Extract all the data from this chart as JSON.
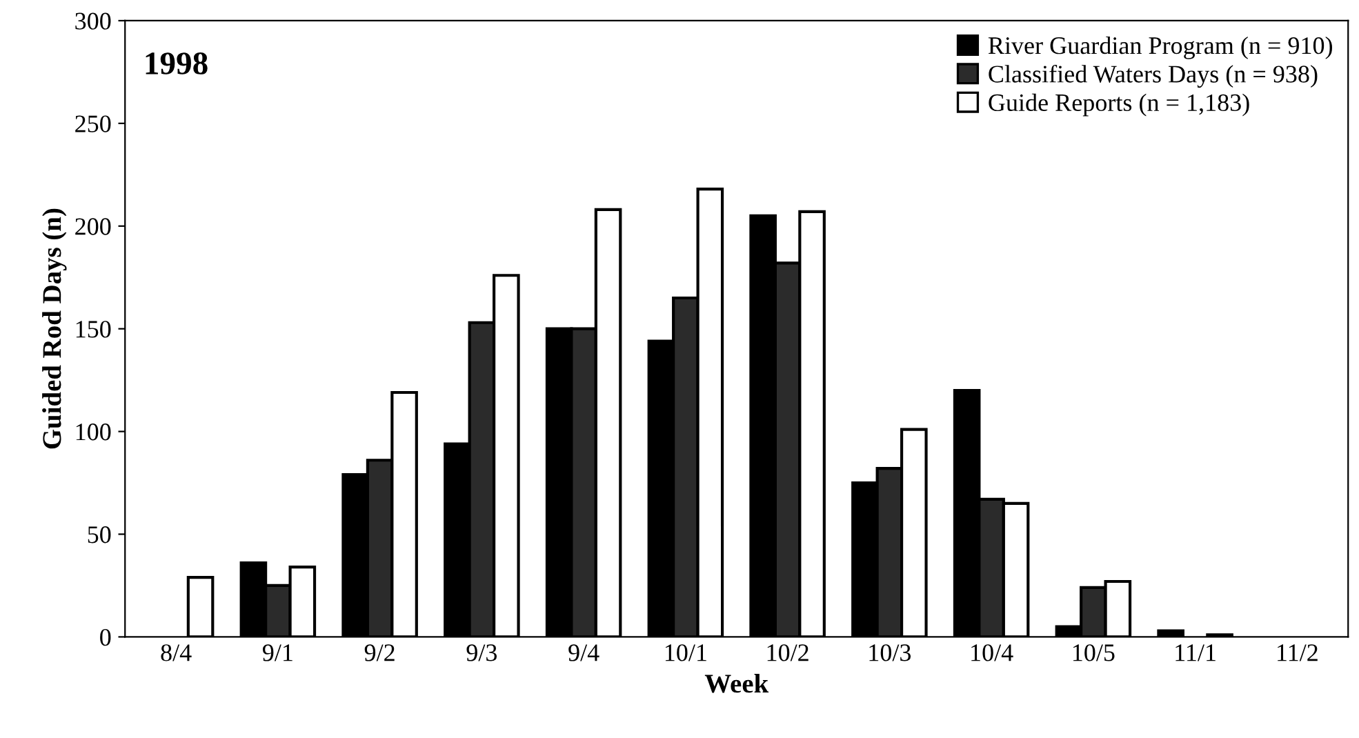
{
  "chart_data": {
    "type": "bar",
    "title": "1998",
    "xlabel": "Week",
    "ylabel": "Guided Rod Days (n)",
    "categories": [
      "8/4",
      "9/1",
      "9/2",
      "9/3",
      "9/4",
      "10/1",
      "10/2",
      "10/3",
      "10/4",
      "10/5",
      "11/1",
      "11/2"
    ],
    "series": [
      {
        "name": "River Guardian Program (n = 910)",
        "color": "#000000",
        "values": [
          0,
          36,
          79,
          94,
          150,
          144,
          205,
          75,
          120,
          5,
          3,
          0
        ]
      },
      {
        "name": "Classified Waters Days (n = 938)",
        "color": "#2b2b2b",
        "values": [
          0,
          25,
          86,
          153,
          150,
          165,
          182,
          82,
          67,
          24,
          0,
          0
        ]
      },
      {
        "name": "Guide Reports (n = 1,183)",
        "color": "#ffffff",
        "values": [
          29,
          34,
          119,
          176,
          208,
          218,
          207,
          101,
          65,
          27,
          1,
          0
        ]
      }
    ],
    "ylim": [
      0,
      300
    ],
    "yticks": [
      0,
      50,
      100,
      150,
      200,
      250,
      300
    ],
    "grid": false,
    "legend": "top right"
  }
}
